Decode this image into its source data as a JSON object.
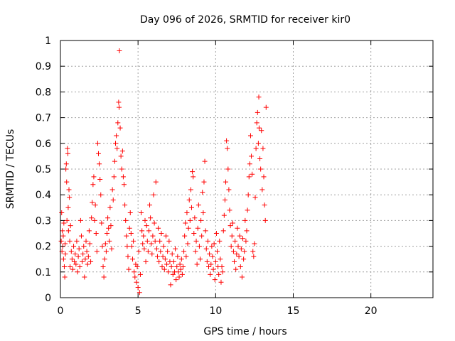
{
  "chart_data": {
    "type": "scatter",
    "title": "Day 096 of 2026, SRMTID for receiver kir0",
    "xlabel": "GPS time / hours",
    "ylabel": "SRMTID / TECUs",
    "xlim": [
      0,
      24
    ],
    "ylim": [
      0,
      1
    ],
    "xticks": [
      0,
      5,
      10,
      15,
      20
    ],
    "xtick_labels": [
      "0",
      "5",
      "10",
      "15",
      "20"
    ],
    "yticks": [
      0,
      0.1,
      0.2,
      0.3,
      0.4,
      0.5,
      0.6,
      0.7,
      0.8,
      0.9,
      1
    ],
    "ytick_labels": [
      "0",
      "0.1",
      "0.2",
      "0.3",
      "0.4",
      "0.5",
      "0.6",
      "0.7",
      "0.8",
      "0.9",
      "1"
    ],
    "grid": true,
    "marker": "+",
    "color": "#ff0000",
    "series": [
      {
        "name": "SRMTID",
        "points": [
          [
            0.05,
            0.22
          ],
          [
            0.08,
            0.33
          ],
          [
            0.1,
            0.18
          ],
          [
            0.12,
            0.26
          ],
          [
            0.15,
            0.2
          ],
          [
            0.18,
            0.24
          ],
          [
            0.2,
            0.15
          ],
          [
            0.22,
            0.29
          ],
          [
            0.25,
            0.12
          ],
          [
            0.28,
            0.08
          ],
          [
            0.3,
            0.21
          ],
          [
            0.32,
            0.17
          ],
          [
            0.35,
            0.5
          ],
          [
            0.38,
            0.52
          ],
          [
            0.4,
            0.45
          ],
          [
            0.42,
            0.3
          ],
          [
            0.45,
            0.58
          ],
          [
            0.48,
            0.56
          ],
          [
            0.5,
            0.35
          ],
          [
            0.52,
            0.26
          ],
          [
            0.55,
            0.42
          ],
          [
            0.58,
            0.39
          ],
          [
            0.6,
            0.22
          ],
          [
            0.62,
            0.12
          ],
          [
            0.65,
            0.28
          ],
          [
            0.7,
            0.18
          ],
          [
            0.75,
            0.15
          ],
          [
            0.8,
            0.11
          ],
          [
            0.85,
            0.2
          ],
          [
            0.9,
            0.14
          ],
          [
            0.95,
            0.17
          ],
          [
            1.0,
            0.13
          ],
          [
            1.05,
            0.22
          ],
          [
            1.1,
            0.1
          ],
          [
            1.15,
            0.16
          ],
          [
            1.2,
            0.19
          ],
          [
            1.25,
            0.12
          ],
          [
            1.3,
            0.3
          ],
          [
            1.35,
            0.24
          ],
          [
            1.4,
            0.14
          ],
          [
            1.45,
            0.17
          ],
          [
            1.5,
            0.2
          ],
          [
            1.55,
            0.08
          ],
          [
            1.6,
            0.15
          ],
          [
            1.65,
            0.22
          ],
          [
            1.7,
            0.18
          ],
          [
            1.75,
            0.13
          ],
          [
            1.8,
            0.16
          ],
          [
            1.85,
            0.26
          ],
          [
            1.9,
            0.21
          ],
          [
            1.95,
            0.14
          ],
          [
            2.0,
            0.31
          ],
          [
            2.05,
            0.37
          ],
          [
            2.1,
            0.44
          ],
          [
            2.15,
            0.47
          ],
          [
            2.2,
            0.3
          ],
          [
            2.25,
            0.36
          ],
          [
            2.3,
            0.25
          ],
          [
            2.35,
            0.18
          ],
          [
            2.4,
            0.6
          ],
          [
            2.45,
            0.56
          ],
          [
            2.5,
            0.52
          ],
          [
            2.55,
            0.46
          ],
          [
            2.6,
            0.4
          ],
          [
            2.65,
            0.29
          ],
          [
            2.7,
            0.2
          ],
          [
            2.75,
            0.12
          ],
          [
            2.8,
            0.08
          ],
          [
            2.85,
            0.15
          ],
          [
            2.9,
            0.21
          ],
          [
            2.95,
            0.18
          ],
          [
            3.0,
            0.25
          ],
          [
            3.05,
            0.31
          ],
          [
            3.1,
            0.27
          ],
          [
            3.15,
            0.22
          ],
          [
            3.2,
            0.35
          ],
          [
            3.25,
            0.28
          ],
          [
            3.3,
            0.19
          ],
          [
            3.35,
            0.42
          ],
          [
            3.4,
            0.38
          ],
          [
            3.45,
            0.47
          ],
          [
            3.5,
            0.53
          ],
          [
            3.55,
            0.6
          ],
          [
            3.6,
            0.63
          ],
          [
            3.65,
            0.58
          ],
          [
            3.7,
            0.68
          ],
          [
            3.75,
            0.76
          ],
          [
            3.78,
            0.74
          ],
          [
            3.8,
            0.96
          ],
          [
            3.85,
            0.66
          ],
          [
            3.9,
            0.55
          ],
          [
            3.95,
            0.5
          ],
          [
            4.0,
            0.57
          ],
          [
            4.05,
            0.47
          ],
          [
            4.1,
            0.44
          ],
          [
            4.15,
            0.36
          ],
          [
            4.2,
            0.3
          ],
          [
            4.25,
            0.24
          ],
          [
            4.3,
            0.2
          ],
          [
            4.35,
            0.16
          ],
          [
            4.4,
            0.11
          ],
          [
            4.45,
            0.27
          ],
          [
            4.5,
            0.33
          ],
          [
            4.55,
            0.25
          ],
          [
            4.6,
            0.2
          ],
          [
            4.65,
            0.15
          ],
          [
            4.7,
            0.22
          ],
          [
            4.75,
            0.1
          ],
          [
            4.8,
            0.08
          ],
          [
            4.85,
            0.13
          ],
          [
            4.9,
            0.06
          ],
          [
            4.95,
            0.12
          ],
          [
            5.0,
            0.04
          ],
          [
            5.05,
            0.18
          ],
          [
            5.1,
            0.02
          ],
          [
            5.15,
            0.09
          ],
          [
            5.2,
            0.33
          ],
          [
            5.25,
            0.26
          ],
          [
            5.3,
            0.21
          ],
          [
            5.35,
            0.24
          ],
          [
            5.4,
            0.19
          ],
          [
            5.45,
            0.3
          ],
          [
            5.5,
            0.14
          ],
          [
            5.55,
            0.28
          ],
          [
            5.6,
            0.22
          ],
          [
            5.65,
            0.18
          ],
          [
            5.7,
            0.26
          ],
          [
            5.75,
            0.36
          ],
          [
            5.8,
            0.31
          ],
          [
            5.85,
            0.21
          ],
          [
            5.9,
            0.17
          ],
          [
            5.95,
            0.24
          ],
          [
            6.0,
            0.4
          ],
          [
            6.05,
            0.29
          ],
          [
            6.1,
            0.22
          ],
          [
            6.15,
            0.45
          ],
          [
            6.2,
            0.19
          ],
          [
            6.25,
            0.16
          ],
          [
            6.3,
            0.27
          ],
          [
            6.35,
            0.14
          ],
          [
            6.4,
            0.22
          ],
          [
            6.45,
            0.18
          ],
          [
            6.5,
            0.25
          ],
          [
            6.55,
            0.12
          ],
          [
            6.6,
            0.16
          ],
          [
            6.65,
            0.2
          ],
          [
            6.7,
            0.11
          ],
          [
            6.75,
            0.15
          ],
          [
            6.8,
            0.24
          ],
          [
            6.85,
            0.13
          ],
          [
            6.9,
            0.18
          ],
          [
            6.95,
            0.1
          ],
          [
            7.0,
            0.22
          ],
          [
            7.05,
            0.14
          ],
          [
            7.1,
            0.05
          ],
          [
            7.15,
            0.12
          ],
          [
            7.2,
            0.17
          ],
          [
            7.25,
            0.09
          ],
          [
            7.3,
            0.14
          ],
          [
            7.35,
            0.1
          ],
          [
            7.4,
            0.19
          ],
          [
            7.45,
            0.07
          ],
          [
            7.5,
            0.12
          ],
          [
            7.55,
            0.16
          ],
          [
            7.6,
            0.1
          ],
          [
            7.65,
            0.08
          ],
          [
            7.7,
            0.13
          ],
          [
            7.75,
            0.11
          ],
          [
            7.8,
            0.15
          ],
          [
            7.85,
            0.09
          ],
          [
            7.9,
            0.12
          ],
          [
            7.95,
            0.18
          ],
          [
            8.0,
            0.24
          ],
          [
            8.05,
            0.29
          ],
          [
            8.1,
            0.16
          ],
          [
            8.15,
            0.33
          ],
          [
            8.2,
            0.21
          ],
          [
            8.25,
            0.27
          ],
          [
            8.3,
            0.38
          ],
          [
            8.35,
            0.3
          ],
          [
            8.4,
            0.42
          ],
          [
            8.45,
            0.35
          ],
          [
            8.5,
            0.49
          ],
          [
            8.55,
            0.47
          ],
          [
            8.6,
            0.25
          ],
          [
            8.65,
            0.31
          ],
          [
            8.7,
            0.18
          ],
          [
            8.75,
            0.22
          ],
          [
            8.8,
            0.13
          ],
          [
            8.85,
            0.27
          ],
          [
            8.9,
            0.36
          ],
          [
            8.95,
            0.2
          ],
          [
            9.0,
            0.15
          ],
          [
            9.05,
            0.3
          ],
          [
            9.1,
            0.24
          ],
          [
            9.15,
            0.41
          ],
          [
            9.2,
            0.33
          ],
          [
            9.25,
            0.45
          ],
          [
            9.3,
            0.53
          ],
          [
            9.35,
            0.26
          ],
          [
            9.4,
            0.19
          ],
          [
            9.45,
            0.14
          ],
          [
            9.5,
            0.22
          ],
          [
            9.55,
            0.12
          ],
          [
            9.6,
            0.17
          ],
          [
            9.65,
            0.09
          ],
          [
            9.7,
            0.13
          ],
          [
            9.75,
            0.2
          ],
          [
            9.8,
            0.16
          ],
          [
            9.85,
            0.11
          ],
          [
            9.9,
            0.21
          ],
          [
            9.95,
            0.07
          ],
          [
            10.0,
            0.14
          ],
          [
            10.05,
            0.25
          ],
          [
            10.1,
            0.18
          ],
          [
            10.15,
            0.12
          ],
          [
            10.2,
            0.09
          ],
          [
            10.25,
            0.22
          ],
          [
            10.3,
            0.15
          ],
          [
            10.35,
            0.06
          ],
          [
            10.4,
            0.12
          ],
          [
            10.45,
            0.1
          ],
          [
            10.5,
            0.26
          ],
          [
            10.55,
            0.32
          ],
          [
            10.6,
            0.38
          ],
          [
            10.65,
            0.45
          ],
          [
            10.7,
            0.61
          ],
          [
            10.75,
            0.58
          ],
          [
            10.8,
            0.5
          ],
          [
            10.85,
            0.42
          ],
          [
            10.9,
            0.34
          ],
          [
            10.95,
            0.28
          ],
          [
            11.0,
            0.2
          ],
          [
            11.05,
            0.24
          ],
          [
            11.1,
            0.29
          ],
          [
            11.15,
            0.18
          ],
          [
            11.2,
            0.14
          ],
          [
            11.25,
            0.22
          ],
          [
            11.3,
            0.11
          ],
          [
            11.35,
            0.17
          ],
          [
            11.4,
            0.27
          ],
          [
            11.45,
            0.2
          ],
          [
            11.5,
            0.16
          ],
          [
            11.55,
            0.24
          ],
          [
            11.6,
            0.12
          ],
          [
            11.65,
            0.19
          ],
          [
            11.7,
            0.08
          ],
          [
            11.75,
            0.23
          ],
          [
            11.8,
            0.15
          ],
          [
            11.85,
            0.18
          ],
          [
            11.9,
            0.3
          ],
          [
            11.95,
            0.22
          ],
          [
            12.0,
            0.26
          ],
          [
            12.05,
            0.34
          ],
          [
            12.1,
            0.4
          ],
          [
            12.15,
            0.47
          ],
          [
            12.2,
            0.52
          ],
          [
            12.25,
            0.63
          ],
          [
            12.3,
            0.55
          ],
          [
            12.35,
            0.48
          ],
          [
            12.4,
            0.18
          ],
          [
            12.45,
            0.16
          ],
          [
            12.5,
            0.21
          ],
          [
            12.55,
            0.39
          ],
          [
            12.6,
            0.58
          ],
          [
            12.65,
            0.68
          ],
          [
            12.7,
            0.72
          ],
          [
            12.75,
            0.6
          ],
          [
            12.78,
            0.78
          ],
          [
            12.8,
            0.66
          ],
          [
            12.85,
            0.54
          ],
          [
            12.9,
            0.5
          ],
          [
            12.95,
            0.65
          ],
          [
            13.0,
            0.42
          ],
          [
            13.05,
            0.58
          ],
          [
            13.1,
            0.47
          ],
          [
            13.15,
            0.36
          ],
          [
            13.2,
            0.3
          ],
          [
            13.25,
            0.74
          ]
        ]
      }
    ]
  }
}
